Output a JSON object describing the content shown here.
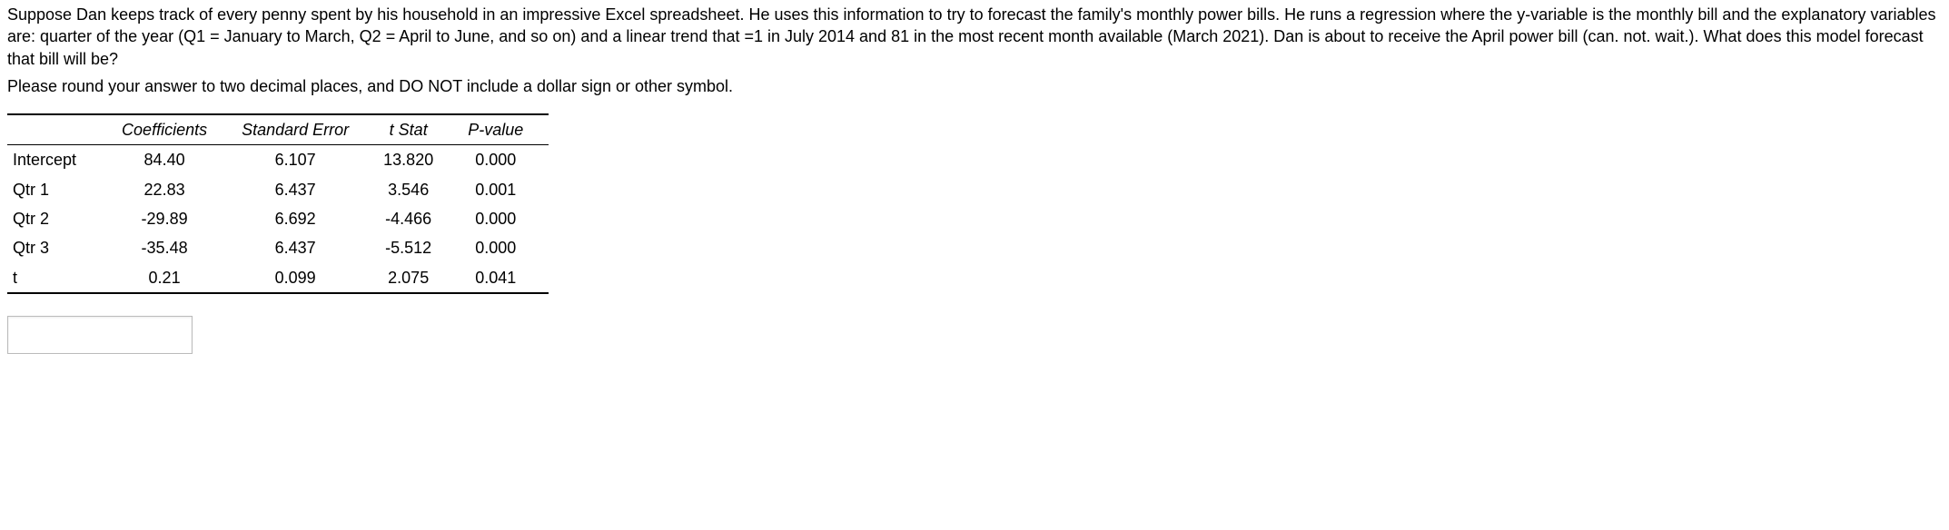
{
  "problem": {
    "para1": "Suppose Dan keeps track of every penny spent by his household in an impressive Excel spreadsheet. He uses this information to try to forecast the family's monthly power bills. He runs a regression where the y-variable is the monthly bill and the explanatory variables are: quarter of the year (Q1 = January to March, Q2 = April to June, and so on) and a linear trend that =1 in July 2014 and 81 in the most recent month available (March 2021). Dan is about to receive the April power bill (can. not. wait.). What does this model forecast that bill will be?",
    "para2": "Please round your answer to two decimal places, and DO NOT include a dollar sign or other symbol."
  },
  "table": {
    "headers": {
      "blank": "",
      "coef": "Coefficients",
      "se": "Standard Error",
      "tstat": "t Stat",
      "pval": "P-value"
    },
    "rows": [
      {
        "label": "Intercept",
        "coef": "84.40",
        "se": "6.107",
        "tstat": "13.820",
        "pval": "0.000"
      },
      {
        "label": "Qtr 1",
        "coef": "22.83",
        "se": "6.437",
        "tstat": "3.546",
        "pval": "0.001"
      },
      {
        "label": "Qtr 2",
        "coef": "-29.89",
        "se": "6.692",
        "tstat": "-4.466",
        "pval": "0.000"
      },
      {
        "label": "Qtr 3",
        "coef": "-35.48",
        "se": "6.437",
        "tstat": "-5.512",
        "pval": "0.000"
      },
      {
        "label": "t",
        "coef": "0.21",
        "se": "0.099",
        "tstat": "2.075",
        "pval": "0.041"
      }
    ]
  },
  "answer": {
    "value": "",
    "placeholder": ""
  }
}
